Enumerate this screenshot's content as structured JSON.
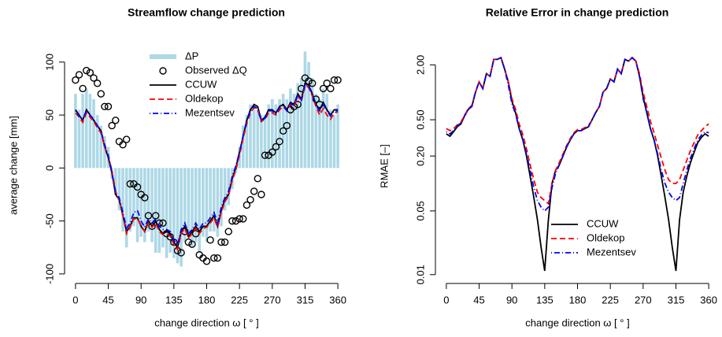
{
  "chart_data": [
    {
      "type": "combo",
      "title": "Streamflow change prediction",
      "xlabel": "change direction ω [ ° ]",
      "ylabel": "average change [mm]",
      "xlim": [
        -15,
        375
      ],
      "ylim": [
        -109,
        114
      ],
      "xticks": [
        0,
        45,
        90,
        135,
        180,
        225,
        270,
        315,
        360
      ],
      "yticks": [
        -100,
        -50,
        0,
        50,
        100
      ],
      "legend": "top",
      "x": [
        0,
        5,
        10,
        15,
        20,
        25,
        30,
        35,
        40,
        45,
        50,
        55,
        60,
        65,
        70,
        75,
        80,
        85,
        90,
        95,
        100,
        105,
        110,
        115,
        120,
        125,
        130,
        135,
        140,
        145,
        150,
        155,
        160,
        165,
        170,
        175,
        180,
        185,
        190,
        195,
        200,
        205,
        210,
        215,
        220,
        225,
        230,
        235,
        240,
        245,
        250,
        255,
        260,
        265,
        270,
        275,
        280,
        285,
        290,
        295,
        300,
        305,
        310,
        315,
        320,
        325,
        330,
        335,
        340,
        345,
        350,
        355,
        360
      ],
      "series": [
        {
          "name": "ΔP",
          "style": "bar",
          "color": "#add8e6",
          "values": [
            70,
            55,
            70,
            75,
            70,
            65,
            50,
            40,
            30,
            20,
            -10,
            -25,
            -40,
            -60,
            -75,
            -60,
            -55,
            -70,
            -65,
            -70,
            -60,
            -70,
            -80,
            -80,
            -75,
            -85,
            -80,
            -85,
            -90,
            -93,
            -70,
            -65,
            -75,
            -70,
            -80,
            -65,
            -70,
            -60,
            -60,
            -65,
            -55,
            -40,
            -35,
            -20,
            -5,
            20,
            40,
            50,
            60,
            55,
            55,
            50,
            50,
            60,
            65,
            60,
            65,
            70,
            65,
            75,
            70,
            80,
            85,
            110,
            100,
            85,
            70,
            65,
            75,
            70,
            55,
            50,
            60
          ]
        },
        {
          "name": "Observed ΔQ",
          "style": "points",
          "color": "#000000",
          "values": [
            83,
            88,
            75,
            92,
            90,
            85,
            80,
            70,
            58,
            58,
            40,
            45,
            25,
            22,
            27,
            -15,
            -15,
            -18,
            -25,
            -28,
            -45,
            -55,
            -45,
            -52,
            -52,
            -62,
            -65,
            -70,
            -78,
            -80,
            -60,
            -70,
            -72,
            -62,
            -82,
            -85,
            -88,
            -68,
            -85,
            -85,
            -70,
            -70,
            -60,
            -50,
            -50,
            -48,
            -48,
            -35,
            -30,
            -22,
            -10,
            -25,
            12,
            12,
            15,
            20,
            25,
            35,
            40,
            55,
            58,
            60,
            75,
            85,
            82,
            80,
            65,
            60,
            75,
            80,
            75,
            83,
            83
          ]
        },
        {
          "name": "CCUW",
          "style": "line",
          "color": "#000000",
          "dash": "none",
          "values": [
            55,
            50,
            45,
            55,
            50,
            45,
            40,
            35,
            20,
            10,
            -5,
            -25,
            -30,
            -45,
            -60,
            -55,
            -47,
            -47,
            -55,
            -60,
            -50,
            -55,
            -50,
            -58,
            -62,
            -60,
            -62,
            -70,
            -75,
            -60,
            -55,
            -65,
            -60,
            -55,
            -60,
            -55,
            -55,
            -50,
            -45,
            -55,
            -40,
            -30,
            -25,
            -10,
            0,
            15,
            30,
            45,
            55,
            60,
            58,
            45,
            48,
            55,
            55,
            52,
            58,
            60,
            55,
            62,
            60,
            70,
            65,
            80,
            78,
            70,
            60,
            55,
            62,
            55,
            50,
            55,
            55
          ]
        },
        {
          "name": "Oldekop",
          "style": "line",
          "color": "#ff0000",
          "dash": "7 4",
          "values": [
            52,
            48,
            43,
            52,
            48,
            44,
            38,
            33,
            20,
            12,
            -3,
            -22,
            -30,
            -45,
            -62,
            -56,
            -48,
            -48,
            -54,
            -60,
            -52,
            -56,
            -52,
            -60,
            -63,
            -62,
            -64,
            -72,
            -77,
            -62,
            -57,
            -66,
            -62,
            -57,
            -62,
            -57,
            -56,
            -52,
            -47,
            -56,
            -42,
            -32,
            -26,
            -12,
            -2,
            12,
            28,
            42,
            52,
            57,
            55,
            44,
            46,
            52,
            52,
            50,
            55,
            58,
            54,
            60,
            58,
            68,
            63,
            78,
            76,
            68,
            58,
            50,
            56,
            50,
            46,
            52,
            53
          ]
        },
        {
          "name": "Mezentsev",
          "style": "line",
          "color": "#0000ff",
          "dash": "1 3 7 3",
          "values": [
            54,
            49,
            46,
            54,
            50,
            46,
            40,
            35,
            22,
            12,
            -4,
            -23,
            -28,
            -42,
            -57,
            -52,
            -42,
            -40,
            -50,
            -56,
            -48,
            -52,
            -48,
            -55,
            -58,
            -58,
            -60,
            -68,
            -73,
            -58,
            -52,
            -62,
            -58,
            -52,
            -58,
            -52,
            -52,
            -47,
            -42,
            -52,
            -37,
            -28,
            -22,
            -8,
            2,
            15,
            30,
            44,
            54,
            58,
            56,
            44,
            47,
            54,
            54,
            51,
            57,
            59,
            54,
            61,
            59,
            69,
            64,
            79,
            77,
            69,
            59,
            54,
            60,
            54,
            49,
            54,
            54
          ]
        }
      ]
    },
    {
      "type": "line",
      "title": "Relative Error in change prediction",
      "xlabel": "change direction ω [ ° ]",
      "ylabel": "RMAE [–]",
      "log_y": true,
      "xlim": [
        -15,
        375
      ],
      "ylim": [
        0.008,
        3
      ],
      "xticks": [
        0,
        45,
        90,
        135,
        180,
        225,
        270,
        315,
        360
      ],
      "yticks": [
        0.01,
        0.05,
        {
          "value": 0.2,
          "label": "0.20"
        },
        {
          "value": 0.5,
          "label": "0.50"
        },
        {
          "value": 2,
          "label": "2.00"
        }
      ],
      "legend": "bottom",
      "x": [
        0,
        5,
        10,
        15,
        20,
        25,
        30,
        35,
        40,
        45,
        50,
        55,
        60,
        65,
        70,
        75,
        80,
        85,
        90,
        95,
        100,
        105,
        110,
        115,
        120,
        125,
        130,
        135,
        140,
        145,
        150,
        155,
        160,
        165,
        170,
        175,
        180,
        185,
        190,
        195,
        200,
        205,
        210,
        215,
        220,
        225,
        230,
        235,
        240,
        245,
        250,
        255,
        260,
        265,
        270,
        275,
        280,
        285,
        290,
        295,
        300,
        305,
        310,
        315,
        320,
        325,
        330,
        335,
        340,
        345,
        350,
        355,
        360
      ],
      "series": [
        {
          "name": "CCUW",
          "color": "#000000",
          "dash": "none",
          "values": [
            0.35,
            0.33,
            0.37,
            0.42,
            0.45,
            0.55,
            0.65,
            0.7,
            1.0,
            1.3,
            1.1,
            1.6,
            1.5,
            2.3,
            2.3,
            2.4,
            1.8,
            1.3,
            0.8,
            0.6,
            0.4,
            0.3,
            0.2,
            0.12,
            0.07,
            0.04,
            0.02,
            0.011,
            0.04,
            0.1,
            0.14,
            0.16,
            0.2,
            0.25,
            0.3,
            0.35,
            0.38,
            0.38,
            0.4,
            0.42,
            0.5,
            0.6,
            0.7,
            1.0,
            1.1,
            1.4,
            1.3,
            1.8,
            1.6,
            2.3,
            2.2,
            2.4,
            2.2,
            1.5,
            0.9,
            0.6,
            0.4,
            0.3,
            0.2,
            0.12,
            0.07,
            0.04,
            0.02,
            0.011,
            0.04,
            0.08,
            0.12,
            0.17,
            0.22,
            0.28,
            0.32,
            0.35,
            0.33
          ]
        },
        {
          "name": "Oldekop",
          "color": "#ff0000",
          "dash": "7 4",
          "values": [
            0.4,
            0.38,
            0.4,
            0.44,
            0.47,
            0.56,
            0.66,
            0.72,
            1.0,
            1.3,
            1.1,
            1.6,
            1.5,
            2.3,
            2.3,
            2.4,
            1.8,
            1.3,
            0.85,
            0.65,
            0.45,
            0.34,
            0.24,
            0.16,
            0.11,
            0.08,
            0.07,
            0.065,
            0.06,
            0.1,
            0.14,
            0.17,
            0.21,
            0.26,
            0.31,
            0.36,
            0.39,
            0.39,
            0.41,
            0.43,
            0.5,
            0.6,
            0.7,
            1.0,
            1.1,
            1.4,
            1.3,
            1.8,
            1.6,
            2.3,
            2.2,
            2.4,
            2.2,
            1.6,
            1.0,
            0.7,
            0.48,
            0.36,
            0.26,
            0.19,
            0.14,
            0.11,
            0.1,
            0.1,
            0.11,
            0.14,
            0.18,
            0.23,
            0.28,
            0.34,
            0.38,
            0.42,
            0.45
          ]
        },
        {
          "name": "Mezentsev",
          "color": "#0000ff",
          "dash": "1 3 7 3",
          "values": [
            0.37,
            0.35,
            0.38,
            0.43,
            0.46,
            0.55,
            0.65,
            0.7,
            1.0,
            1.3,
            1.1,
            1.6,
            1.5,
            2.3,
            2.3,
            2.4,
            1.8,
            1.2,
            0.75,
            0.58,
            0.4,
            0.3,
            0.21,
            0.14,
            0.09,
            0.065,
            0.055,
            0.05,
            0.055,
            0.09,
            0.13,
            0.16,
            0.2,
            0.25,
            0.3,
            0.35,
            0.38,
            0.38,
            0.4,
            0.42,
            0.5,
            0.6,
            0.7,
            1.0,
            1.1,
            1.4,
            1.3,
            1.8,
            1.6,
            2.3,
            2.2,
            2.4,
            2.2,
            1.5,
            0.85,
            0.6,
            0.4,
            0.3,
            0.21,
            0.14,
            0.1,
            0.08,
            0.07,
            0.065,
            0.07,
            0.1,
            0.14,
            0.19,
            0.24,
            0.3,
            0.34,
            0.37,
            0.36
          ]
        }
      ]
    }
  ]
}
